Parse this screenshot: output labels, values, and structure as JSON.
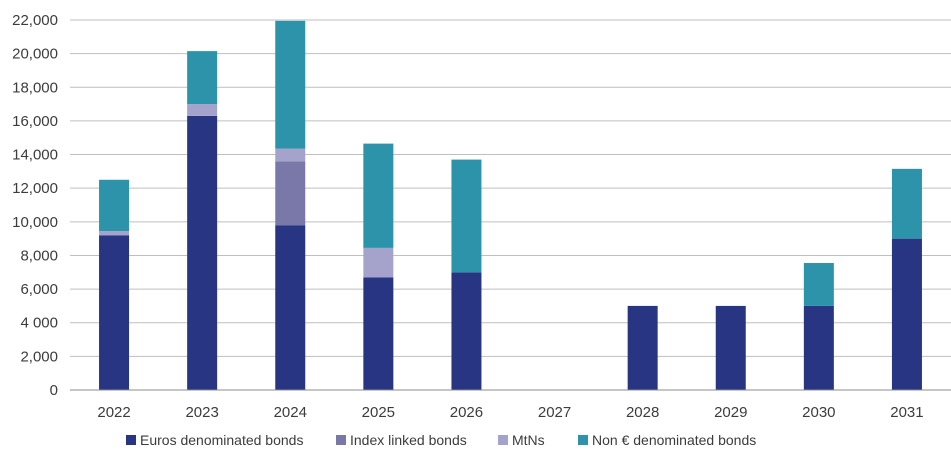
{
  "chart_data": {
    "type": "bar",
    "stacked": true,
    "title": "",
    "xlabel": "",
    "ylabel": "",
    "categories": [
      "2022",
      "2023",
      "2024",
      "2025",
      "2026",
      "2027",
      "2028",
      "2029",
      "2030",
      "2031"
    ],
    "series": [
      {
        "name": "Euros denominated bonds",
        "color": "#283583",
        "values": [
          9200,
          16300,
          9800,
          6700,
          7000,
          0,
          5000,
          5000,
          5000,
          9000
        ]
      },
      {
        "name": "Index linked bonds",
        "color": "#7a78a8",
        "values": [
          0,
          0,
          3800,
          0,
          0,
          0,
          0,
          0,
          0,
          0
        ]
      },
      {
        "name": "MtNs",
        "color": "#a5a3cb",
        "values": [
          250,
          700,
          750,
          1750,
          0,
          0,
          0,
          0,
          0,
          0
        ]
      },
      {
        "name": "Non € denominated bonds",
        "color": "#2c93aa",
        "values": [
          3050,
          3150,
          7600,
          6200,
          6700,
          0,
          0,
          0,
          2550,
          4150
        ]
      }
    ],
    "ylim": [
      0,
      22000
    ],
    "yticks": [
      0,
      2000,
      4000,
      6000,
      8000,
      10000,
      12000,
      14000,
      16000,
      18000,
      20000,
      22000
    ],
    "ytick_labels": [
      "0",
      "2,000",
      "4 000",
      "6,000",
      "8,000",
      "10,000",
      "12,000",
      "14,000",
      "16,000",
      "18,000",
      "20,000",
      "22,000"
    ],
    "grid": true,
    "legend_position": "bottom"
  }
}
